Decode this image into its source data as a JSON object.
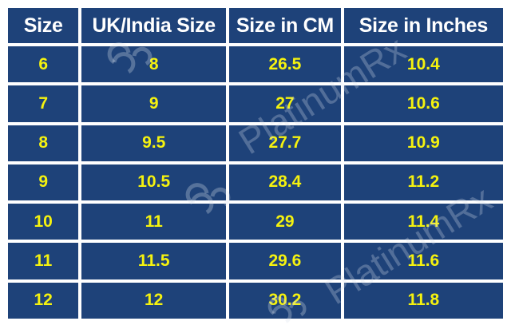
{
  "table": {
    "headers": [
      "Size",
      "UK/India Size",
      "Size in CM",
      "Size in Inches"
    ],
    "rows": [
      [
        "6",
        "8",
        "26.5",
        "10.4"
      ],
      [
        "7",
        "9",
        "27",
        "10.6"
      ],
      [
        "8",
        "9.5",
        "27.7",
        "10.9"
      ],
      [
        "9",
        "10.5",
        "28.4",
        "11.2"
      ],
      [
        "10",
        "11",
        "29",
        "11.4"
      ],
      [
        "11",
        "11.5",
        "29.6",
        "11.6"
      ],
      [
        "12",
        "12",
        "30.2",
        "11.8"
      ]
    ]
  },
  "watermark": {
    "brand": "PlatinumRx",
    "icon": "platinumrx-logo-icon"
  },
  "colors": {
    "cell_background": "#1e4279",
    "header_text": "#ffffff",
    "value_text": "#f5f20f",
    "grid_lines": "#ffffff"
  }
}
